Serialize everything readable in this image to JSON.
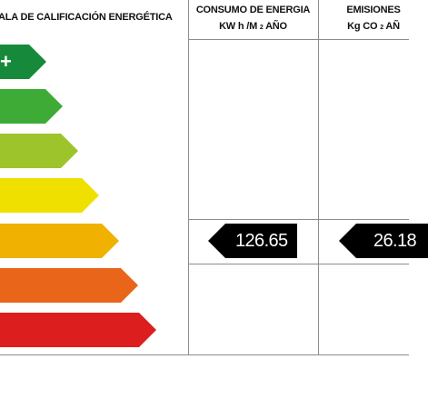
{
  "header": {
    "scale_title": "ALA DE CALIFICACIÓN ENERGÉTICA",
    "consumption_title": "CONSUMO DE ENERGIA",
    "consumption_unit_prefix": "KW h /M",
    "consumption_unit_sub": "2",
    "consumption_unit_suffix": "AÑO",
    "emissions_title": "EMISIONES",
    "emissions_unit_prefix": "Kg CO",
    "emissions_unit_sub": "2",
    "emissions_unit_suffix": "AÑ"
  },
  "scale": {
    "bars": [
      {
        "label": "+",
        "color": "#168a3a"
      },
      {
        "label": "",
        "color": "#3dab35"
      },
      {
        "label": "",
        "color": "#9dc42a"
      },
      {
        "label": "",
        "color": "#f0e000"
      },
      {
        "label": "",
        "color": "#f0b100"
      },
      {
        "label": "",
        "color": "#e8651a"
      },
      {
        "label": "",
        "color": "#dd1e1e"
      }
    ]
  },
  "ratings": {
    "consumption_value": "126.65",
    "emissions_value": "26.18",
    "tag_color": "#000000"
  }
}
